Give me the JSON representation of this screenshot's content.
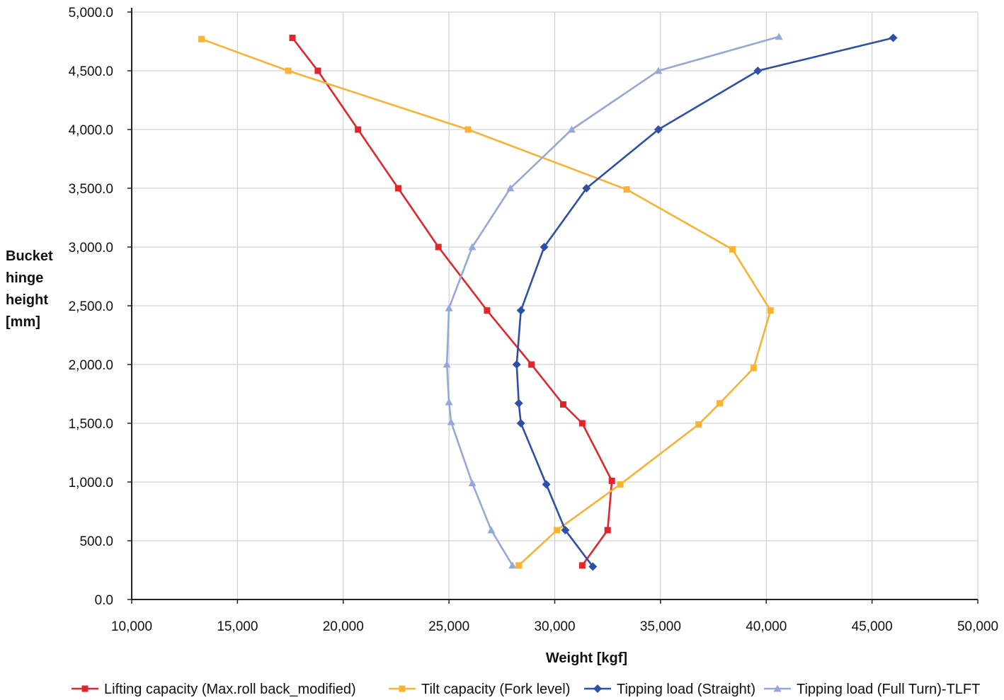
{
  "chart_data": {
    "type": "line",
    "xlabel": "Weight [kgf]",
    "ylabel": [
      "Bucket",
      "hinge",
      "height",
      "[mm]"
    ],
    "xlim": [
      10000,
      50000
    ],
    "ylim": [
      0,
      5000
    ],
    "x_ticks": [
      10000,
      15000,
      20000,
      25000,
      30000,
      35000,
      40000,
      45000,
      50000
    ],
    "x_tick_labels": [
      "10,000",
      "15,000",
      "20,000",
      "25,000",
      "30,000",
      "35,000",
      "40,000",
      "45,000",
      "50,000"
    ],
    "y_ticks": [
      0,
      500,
      1000,
      1500,
      2000,
      2500,
      3000,
      3500,
      4000,
      4500,
      5000
    ],
    "y_tick_labels": [
      "0.0",
      "500.0",
      "1,000.0",
      "1,500.0",
      "2,000.0",
      "2,500.0",
      "3,000.0",
      "3,500.0",
      "4,000.0",
      "4,500.0",
      "5,000.0"
    ],
    "grid": true,
    "legend_position": "bottom",
    "series": [
      {
        "name": "Lifting capacity (Max.roll back_modified)",
        "color": "#e0262b",
        "marker": "square",
        "points": [
          [
            17600,
            4780
          ],
          [
            18800,
            4500
          ],
          [
            20700,
            4000
          ],
          [
            22600,
            3500
          ],
          [
            24500,
            3000
          ],
          [
            26800,
            2460
          ],
          [
            28900,
            2000
          ],
          [
            30400,
            1660
          ],
          [
            31300,
            1500
          ],
          [
            32700,
            1010
          ],
          [
            32500,
            590
          ],
          [
            31300,
            290
          ]
        ]
      },
      {
        "name": "Tilt capacity (Fork level)",
        "color": "#f9b233",
        "marker": "square",
        "points": [
          [
            13300,
            4770
          ],
          [
            17400,
            4500
          ],
          [
            25900,
            4000
          ],
          [
            33400,
            3490
          ],
          [
            38400,
            2980
          ],
          [
            40200,
            2460
          ],
          [
            39400,
            1970
          ],
          [
            37800,
            1670
          ],
          [
            36800,
            1490
          ],
          [
            33100,
            980
          ],
          [
            30100,
            590
          ],
          [
            28300,
            290
          ]
        ]
      },
      {
        "name": "Tipping load (Straight)",
        "color": "#2e4fa8",
        "marker": "diamond",
        "points": [
          [
            46000,
            4780
          ],
          [
            39600,
            4500
          ],
          [
            34900,
            4000
          ],
          [
            31500,
            3500
          ],
          [
            29500,
            3000
          ],
          [
            28400,
            2460
          ],
          [
            28200,
            2000
          ],
          [
            28300,
            1670
          ],
          [
            28400,
            1500
          ],
          [
            29600,
            980
          ],
          [
            30500,
            590
          ],
          [
            31800,
            280
          ]
        ]
      },
      {
        "name": "Tipping load (Full Turn)-TLFT",
        "color": "#95a8d8",
        "marker": "triangle",
        "points": [
          [
            40600,
            4790
          ],
          [
            34900,
            4500
          ],
          [
            30800,
            4000
          ],
          [
            27900,
            3500
          ],
          [
            26100,
            3000
          ],
          [
            25000,
            2480
          ],
          [
            24900,
            2000
          ],
          [
            25000,
            1680
          ],
          [
            25100,
            1510
          ],
          [
            26100,
            990
          ],
          [
            27000,
            590
          ],
          [
            28000,
            290
          ]
        ]
      }
    ]
  }
}
